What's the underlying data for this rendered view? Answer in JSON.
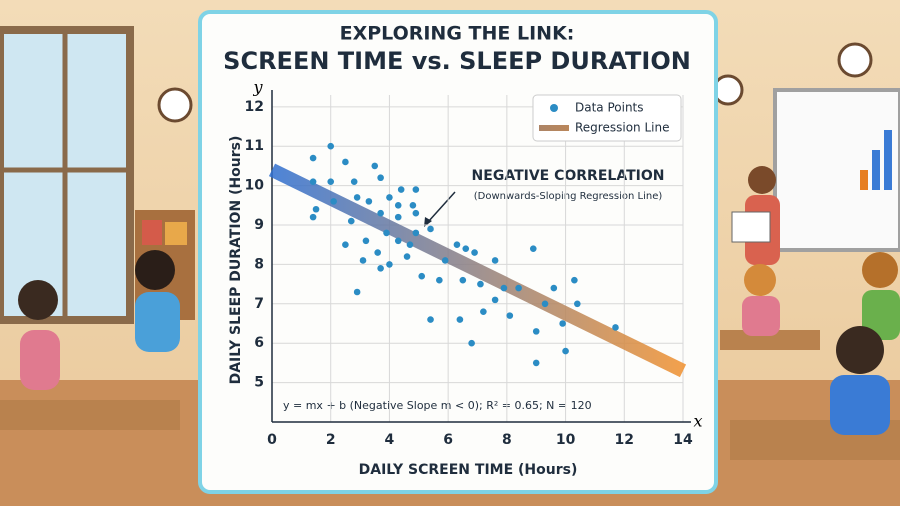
{
  "chart_data": {
    "type": "scatter",
    "title": "EXPLORING THE LINK:",
    "subtitle": "SCREEN TIME vs. SLEEP DURATION",
    "x_label": "DAILY SCREEN TIME (Hours)",
    "y_label": "DAILY SLEEP DURATION (Hours)",
    "x_axis_letter": "x",
    "y_axis_letter": "y",
    "annotation": "NEGATIVE CORRELATION",
    "annotation_sub": "(Downwards-Sloping Regression Line)",
    "equation": "y = mx + b (Negative Slope m < 0); R² = 0.65; N = 120",
    "xlim": [
      0,
      14
    ],
    "ylim": [
      4,
      12.3
    ],
    "xticks": [
      0,
      2,
      4,
      6,
      8,
      10,
      12,
      14
    ],
    "yticks": [
      5,
      6,
      7,
      8,
      9,
      10,
      11,
      12
    ],
    "grid": true,
    "legend": "top-right",
    "series": [
      {
        "name": "Data Points",
        "type": "scatter",
        "color": "#2b8cc4",
        "x": [
          2.0,
          1.4,
          2.5,
          1.4,
          3.5,
          2.0,
          2.8,
          3.7,
          2.9,
          2.1,
          1.5,
          1.4,
          3.3,
          4.0,
          4.4,
          4.9,
          4.3,
          4.8,
          4.3,
          4.9,
          3.7,
          2.7,
          5.4,
          3.9,
          3.2,
          2.5,
          4.3,
          4.7,
          3.6,
          3.1,
          4.0,
          4.6,
          6.3,
          6.6,
          6.9,
          7.6,
          8.9,
          5.9,
          5.7,
          6.5,
          7.1,
          5.1,
          2.9,
          3.7,
          7.9,
          8.4,
          7.6,
          7.2,
          6.4,
          5.4,
          8.1,
          9.0,
          9.9,
          10.4,
          11.7,
          10.3,
          9.6,
          9.3,
          6.8,
          9.0,
          10.0,
          4.9
        ],
        "values": [
          11.0,
          10.7,
          10.6,
          10.1,
          10.5,
          10.1,
          10.1,
          10.2,
          9.7,
          9.6,
          9.4,
          9.2,
          9.6,
          9.7,
          9.9,
          9.9,
          9.5,
          9.5,
          9.2,
          9.3,
          9.3,
          9.1,
          8.9,
          8.8,
          8.6,
          8.5,
          8.6,
          8.5,
          8.3,
          8.1,
          8.0,
          8.2,
          8.5,
          8.4,
          8.3,
          8.1,
          8.4,
          8.1,
          7.6,
          7.6,
          7.5,
          7.7,
          7.3,
          7.9,
          7.4,
          7.4,
          7.1,
          6.8,
          6.6,
          6.6,
          6.7,
          6.3,
          6.5,
          7.0,
          6.4,
          7.6,
          7.4,
          7.0,
          6.0,
          5.5,
          5.8,
          8.8
        ]
      },
      {
        "name": "Regression Line",
        "type": "line",
        "color": "#2f6fd0",
        "end_color": "#f0902e",
        "x": [
          0,
          14
        ],
        "values": [
          10.4,
          5.3
        ]
      }
    ]
  }
}
